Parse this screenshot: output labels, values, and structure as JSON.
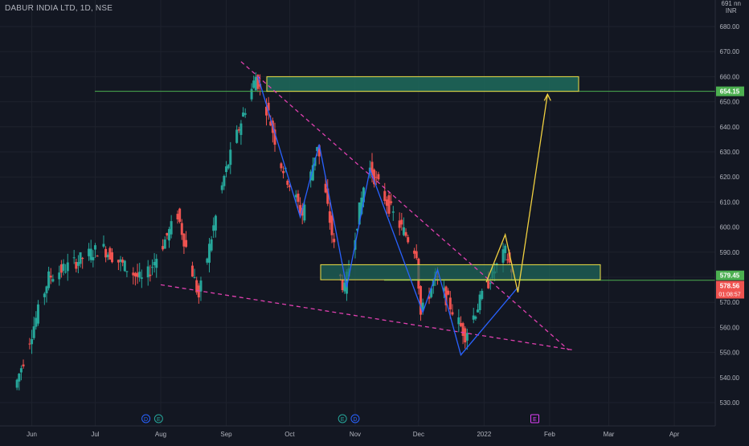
{
  "header": {
    "symbol_title": "DABUR INDIA LTD, 1D, NSE",
    "currency_line1": "691 nn",
    "currency_line2": "INR"
  },
  "price_axis": {
    "ticks": [
      "680.00",
      "670.00",
      "660.00",
      "650.00",
      "640.00",
      "630.00",
      "620.00",
      "610.00",
      "600.00",
      "590.00",
      "580.00",
      "570.00",
      "560.00",
      "550.00",
      "540.00",
      "530.00"
    ],
    "badges": {
      "target": "654.15",
      "level": "579.45",
      "last": "578.56",
      "countdown": "01:08:57"
    }
  },
  "time_axis": {
    "labels": [
      "Jun",
      "Jul",
      "Aug",
      "Sep",
      "Oct",
      "Nov",
      "Dec",
      "2022",
      "Feb",
      "Mar",
      "Apr"
    ]
  },
  "event_markers": [
    "D",
    "E",
    "E",
    "D",
    "E"
  ],
  "colors": {
    "background": "#131722",
    "bull": "#26a69a",
    "bear": "#ef5350",
    "zone_fill": "#1f6b5c",
    "zone_border": "#f0e046",
    "zigzag": "#2962ff",
    "projection": "#f0d040",
    "trendline": "#e040b0",
    "level_line": "#4caf50"
  },
  "chart_data": {
    "type": "candlestick",
    "title": "DABUR INDIA LTD, 1D, NSE",
    "ylim": [
      522,
      690
    ],
    "x_range": [
      "May 2021",
      "Apr 2022"
    ],
    "key_points": [
      {
        "date": "2021-05-25",
        "price": 536
      },
      {
        "date": "2021-06-10",
        "price": 580
      },
      {
        "date": "2021-07-05",
        "price": 592
      },
      {
        "date": "2021-07-25",
        "price": 578
      },
      {
        "date": "2021-08-10",
        "price": 605
      },
      {
        "date": "2021-08-20",
        "price": 572
      },
      {
        "date": "2021-09-01",
        "price": 620
      },
      {
        "date": "2021-09-10",
        "price": 645
      },
      {
        "date": "2021-09-16",
        "price": 660
      },
      {
        "date": "2021-09-22",
        "price": 645
      },
      {
        "date": "2021-09-28",
        "price": 625
      },
      {
        "date": "2021-10-08",
        "price": 605
      },
      {
        "date": "2021-10-15",
        "price": 633
      },
      {
        "date": "2021-10-25",
        "price": 582
      },
      {
        "date": "2021-10-28",
        "price": 575
      },
      {
        "date": "2021-11-08",
        "price": 625
      },
      {
        "date": "2021-11-20",
        "price": 605
      },
      {
        "date": "2021-12-01",
        "price": 590
      },
      {
        "date": "2021-12-03",
        "price": 565
      },
      {
        "date": "2021-12-10",
        "price": 580
      },
      {
        "date": "2021-12-24",
        "price": 557
      },
      {
        "date": "2022-01-05",
        "price": 580
      },
      {
        "date": "2022-01-12",
        "price": 590
      },
      {
        "date": "2022-01-17",
        "price": 578.56
      }
    ],
    "annotations": {
      "resistance_zone": [
        654.15,
        660
      ],
      "support_zone": [
        579,
        585
      ],
      "target_level": 654.15,
      "current_level": 579.45,
      "last_price": 578.56
    }
  }
}
